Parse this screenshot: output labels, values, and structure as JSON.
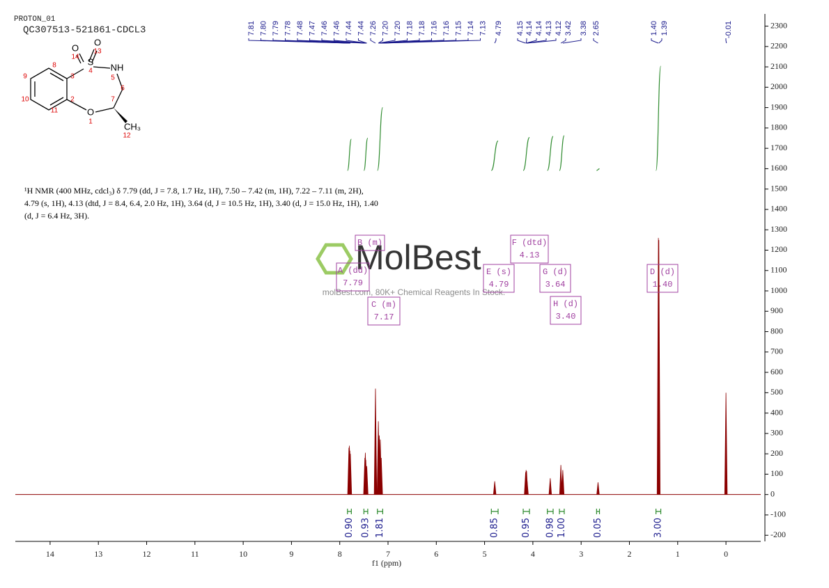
{
  "chart_data": {
    "type": "nmr",
    "title": "PROTON_01",
    "subtitle": "QC307513-521861-CDCL3",
    "x_label": "f1 (ppm)",
    "xlim": [
      14.72,
      -0.72
    ],
    "xticks": [
      14,
      13,
      12,
      11,
      10,
      9,
      8,
      7,
      6,
      5,
      4,
      3,
      2,
      1,
      0
    ],
    "ylim": [
      -230,
      2360
    ],
    "yticks": [
      -200,
      -100,
      0,
      100,
      200,
      300,
      400,
      500,
      600,
      700,
      800,
      900,
      1000,
      1100,
      1200,
      1300,
      1400,
      1500,
      1600,
      1700,
      1800,
      1900,
      2000,
      2100,
      2200,
      2300
    ],
    "spectrum_color": "#8b0000",
    "peaks": {
      "x": [
        7.81,
        7.8,
        7.79,
        7.78,
        7.48,
        7.47,
        7.46,
        7.44,
        7.26,
        7.2,
        7.18,
        7.16,
        7.14,
        4.79,
        4.15,
        4.14,
        4.13,
        4.12,
        3.64,
        3.42,
        3.38,
        2.65,
        1.4,
        1.39,
        0.0
      ],
      "heights": [
        230,
        240,
        215,
        200,
        180,
        205,
        170,
        140,
        520,
        360,
        290,
        270,
        180,
        65,
        110,
        120,
        115,
        70,
        80,
        145,
        120,
        60,
        1260,
        1250,
        500
      ]
    },
    "peak_labels": [
      "7.81",
      "7.80",
      "7.79",
      "7.78",
      "7.48",
      "7.47",
      "7.46",
      "7.46",
      "7.44",
      "7.44",
      "7.26",
      "7.20",
      "7.20",
      "7.18",
      "7.18",
      "7.16",
      "7.16",
      "7.15",
      "7.14",
      "7.13",
      "4.79",
      "4.15",
      "4.14",
      "4.14",
      "4.13",
      "4.12",
      "3.42",
      "3.38",
      "2.65",
      "1.40",
      "1.39",
      "-0.01"
    ],
    "peak_label_color": "#1a1a8c",
    "integrals": {
      "x": [
        [
          7.84,
          7.76
        ],
        [
          7.5,
          7.42
        ],
        [
          7.22,
          7.11
        ],
        [
          4.86,
          4.72
        ],
        [
          4.2,
          4.07
        ],
        [
          3.7,
          3.58
        ],
        [
          3.45,
          3.35
        ],
        [
          2.68,
          2.62
        ],
        [
          1.45,
          1.35
        ]
      ],
      "values": [
        0.9,
        0.93,
        1.81,
        0.85,
        0.95,
        0.98,
        1,
        0.05,
        3
      ],
      "value_labels": [
        "0.90",
        "0.93",
        "1.81",
        "0.85",
        "0.95",
        "0.98",
        "1.00",
        "0.05",
        "3.00"
      ],
      "color": "#2e8b2e"
    },
    "multiplets": [
      {
        "label": "A (dd)",
        "shift": "7.79"
      },
      {
        "label": "B (m)"
      },
      {
        "label": "C (m)",
        "shift": "7.17"
      },
      {
        "label": "E (s)",
        "shift": "4.79"
      },
      {
        "label": "F (dtd)",
        "shift": "4.13"
      },
      {
        "label": "G (d)",
        "shift": "3.64"
      },
      {
        "label": "H (d)",
        "shift": "3.40"
      },
      {
        "label": "D (d)",
        "shift": "1.40"
      }
    ],
    "multiplet_color": "#a040a0",
    "description": [
      "¹H NMR (400 MHz, cdcl₃) δ 7.79 (dd, J = 7.8, 1.7 Hz, 1H), 7.50 – 7.42 (m, 1H), 7.22 – 7.11 (m, 2H),",
      "4.79 (s, 1H), 4.13 (dtd, J = 8.4, 6.4, 2.0 Hz, 1H), 3.64 (d, J = 10.5 Hz, 1H), 3.40 (d, J = 15.0 Hz, 1H), 1.40",
      "(d, J = 6.4 Hz, 3H)."
    ],
    "structure_labels": [
      "O",
      "13",
      "O",
      "14",
      "S",
      "4",
      "NH",
      "5",
      "6",
      "3",
      "8",
      "9",
      "10",
      "2",
      "11",
      "O",
      "1",
      "7",
      "CH₃",
      "12"
    ],
    "watermark": {
      "logo": "MolBest",
      "text": "molBest.com, 80K+ Chemical Reagents In Stock."
    }
  }
}
